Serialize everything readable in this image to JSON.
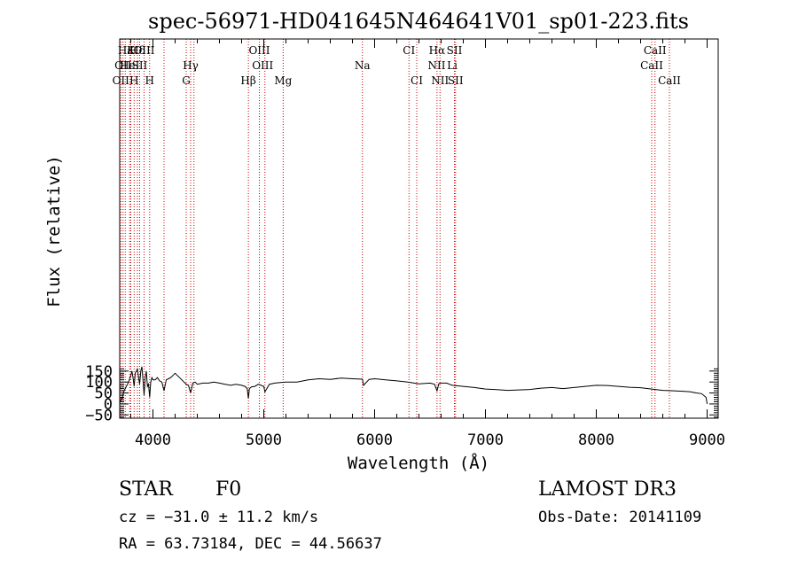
{
  "chart_data": {
    "type": "line",
    "title": "spec-56971-HD041645N464641V01_sp01-223.fits",
    "xlabel": "Wavelength (Å)",
    "ylabel": "Flux (relative)",
    "xlim": [
      3700,
      9100
    ],
    "ylim": [
      -65,
      1665
    ],
    "x_ticks": [
      4000,
      5000,
      6000,
      7000,
      8000,
      9000
    ],
    "y_ticks": [
      -50,
      0,
      50,
      100,
      150
    ],
    "y_tick_labels": [
      "−50",
      "0",
      "50",
      "100",
      "150"
    ],
    "grid": false,
    "line_color": "#000000",
    "marker_color": "#cc0000",
    "series": [
      {
        "x": [
          3700,
          3720,
          3740,
          3760,
          3780,
          3800,
          3810,
          3820,
          3830,
          3840,
          3850,
          3860,
          3870,
          3880,
          3890,
          3900,
          3910,
          3920,
          3930,
          3940,
          3950,
          3960,
          3970,
          3980,
          3990,
          4000,
          4020,
          4040,
          4060,
          4080,
          4100,
          4120,
          4140,
          4160,
          4180,
          4200,
          4220,
          4240,
          4260,
          4280,
          4300,
          4320,
          4340,
          4360,
          4380,
          4400,
          4450,
          4500,
          4550,
          4600,
          4650,
          4700,
          4750,
          4800,
          4830,
          4850,
          4861,
          4870,
          4890,
          4920,
          4950,
          5000,
          5010,
          5050,
          5100,
          5150,
          5200,
          5300,
          5400,
          5500,
          5600,
          5700,
          5800,
          5890,
          5900,
          5950,
          6000,
          6100,
          6200,
          6300,
          6400,
          6500,
          6540,
          6563,
          6580,
          6600,
          6650,
          6700,
          6800,
          6900,
          7000,
          7100,
          7200,
          7300,
          7400,
          7500,
          7600,
          7700,
          7800,
          7900,
          8000,
          8100,
          8200,
          8300,
          8400,
          8500,
          8600,
          8700,
          8800,
          8850,
          8900,
          8950,
          8990,
          9000
        ],
        "y": [
          5,
          25,
          60,
          80,
          100,
          130,
          150,
          120,
          80,
          140,
          150,
          160,
          120,
          90,
          150,
          170,
          110,
          40,
          120,
          150,
          80,
          90,
          30,
          100,
          120,
          110,
          110,
          120,
          105,
          100,
          60,
          110,
          115,
          120,
          130,
          140,
          130,
          120,
          110,
          100,
          90,
          85,
          50,
          95,
          100,
          90,
          95,
          95,
          100,
          95,
          90,
          85,
          90,
          85,
          80,
          70,
          25,
          70,
          78,
          80,
          90,
          80,
          55,
          90,
          95,
          98,
          100,
          100,
          110,
          115,
          112,
          118,
          115,
          113,
          85,
          112,
          115,
          110,
          105,
          100,
          92,
          95,
          90,
          60,
          93,
          95,
          95,
          85,
          80,
          75,
          68,
          65,
          62,
          64,
          66,
          72,
          75,
          70,
          75,
          80,
          85,
          84,
          80,
          76,
          74,
          68,
          62,
          60,
          57,
          55,
          50,
          47,
          30,
          0
        ]
      }
    ],
    "line_markers": [
      {
        "label": "Hε",
        "x": 3750,
        "row": 1
      },
      {
        "label": "K",
        "x": 3800,
        "row": 1
      },
      {
        "label": "Hδ",
        "x": 3860,
        "row": 1
      },
      {
        "label": "OIII",
        "x": 3920,
        "row": 1
      },
      {
        "label": "OIII",
        "x": 4960,
        "row": 1
      },
      {
        "label": "CI",
        "x": 6310,
        "row": 1
      },
      {
        "label": "Hα",
        "x": 6563,
        "row": 1
      },
      {
        "label": "SII",
        "x": 6720,
        "row": 1
      },
      {
        "label": "CaII",
        "x": 8530,
        "row": 1
      },
      {
        "label": "OII",
        "x": 3730,
        "row": 2
      },
      {
        "label": "HeI",
        "x": 3790,
        "row": 2
      },
      {
        "label": "SII",
        "x": 3880,
        "row": 2
      },
      {
        "label": "Hγ",
        "x": 4340,
        "row": 2
      },
      {
        "label": "OIII",
        "x": 4990,
        "row": 2
      },
      {
        "label": "Na",
        "x": 5890,
        "row": 2
      },
      {
        "label": "NII",
        "x": 6560,
        "row": 2
      },
      {
        "label": "Li",
        "x": 6700,
        "row": 2
      },
      {
        "label": "CaII",
        "x": 8500,
        "row": 2
      },
      {
        "label": "OII",
        "x": 3710,
        "row": 3
      },
      {
        "label": "H",
        "x": 3830,
        "row": 3
      },
      {
        "label": "H",
        "x": 3970,
        "row": 3
      },
      {
        "label": "G",
        "x": 4300,
        "row": 3
      },
      {
        "label": "Hβ",
        "x": 4861,
        "row": 3
      },
      {
        "label": "Mg",
        "x": 5175,
        "row": 3
      },
      {
        "label": "CI",
        "x": 6380,
        "row": 3
      },
      {
        "label": "NII",
        "x": 6590,
        "row": 3
      },
      {
        "label": "SII",
        "x": 6730,
        "row": 3
      },
      {
        "label": "CaII",
        "x": 8660,
        "row": 3
      }
    ],
    "marker_line_positions": [
      3710,
      3730,
      3750,
      3790,
      3800,
      3830,
      3860,
      3880,
      3920,
      3970,
      4100,
      4300,
      4340,
      4370,
      4861,
      4960,
      5010,
      5175,
      5890,
      6310,
      6380,
      6563,
      6590,
      6720,
      6730,
      8500,
      8530,
      8660
    ]
  },
  "info": {
    "object_type": "STAR",
    "subclass": "F0",
    "survey": "LAMOST DR3",
    "redshift": "cz = −31.0 ± 11.2 km/s",
    "obs_date": "Obs-Date: 20141109",
    "coords": "RA =  63.73184, DEC =  44.56637"
  }
}
